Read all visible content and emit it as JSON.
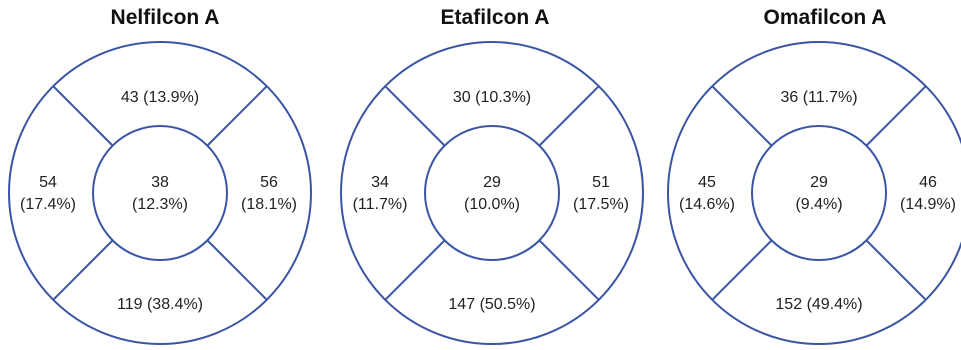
{
  "colors": {
    "outline": "#3a55a4",
    "text": "#222222"
  },
  "panels": [
    {
      "title": "Nelfilcon A",
      "zones": {
        "top": {
          "count": "43",
          "percent": "(13.9%)"
        },
        "left": {
          "count": "54",
          "percent": "(17.4%)"
        },
        "center": {
          "count": "38",
          "percent": "(12.3%)"
        },
        "right": {
          "count": "56",
          "percent": "(18.1%)"
        },
        "bottom": {
          "count": "119",
          "percent": "(38.4%)"
        }
      }
    },
    {
      "title": "Etafilcon A",
      "zones": {
        "top": {
          "count": "30",
          "percent": "(10.3%)"
        },
        "left": {
          "count": "34",
          "percent": "(11.7%)"
        },
        "center": {
          "count": "29",
          "percent": "(10.0%)"
        },
        "right": {
          "count": "51",
          "percent": "(17.5%)"
        },
        "bottom": {
          "count": "147",
          "percent": "(50.5%)"
        }
      }
    },
    {
      "title": "Omafilcon A",
      "zones": {
        "top": {
          "count": "36",
          "percent": "(11.7%)"
        },
        "left": {
          "count": "45",
          "percent": "(14.6%)"
        },
        "center": {
          "count": "29",
          "percent": "(9.4%)"
        },
        "right": {
          "count": "46",
          "percent": "(14.9%)"
        },
        "bottom": {
          "count": "152",
          "percent": "(49.4%)"
        }
      }
    }
  ]
}
